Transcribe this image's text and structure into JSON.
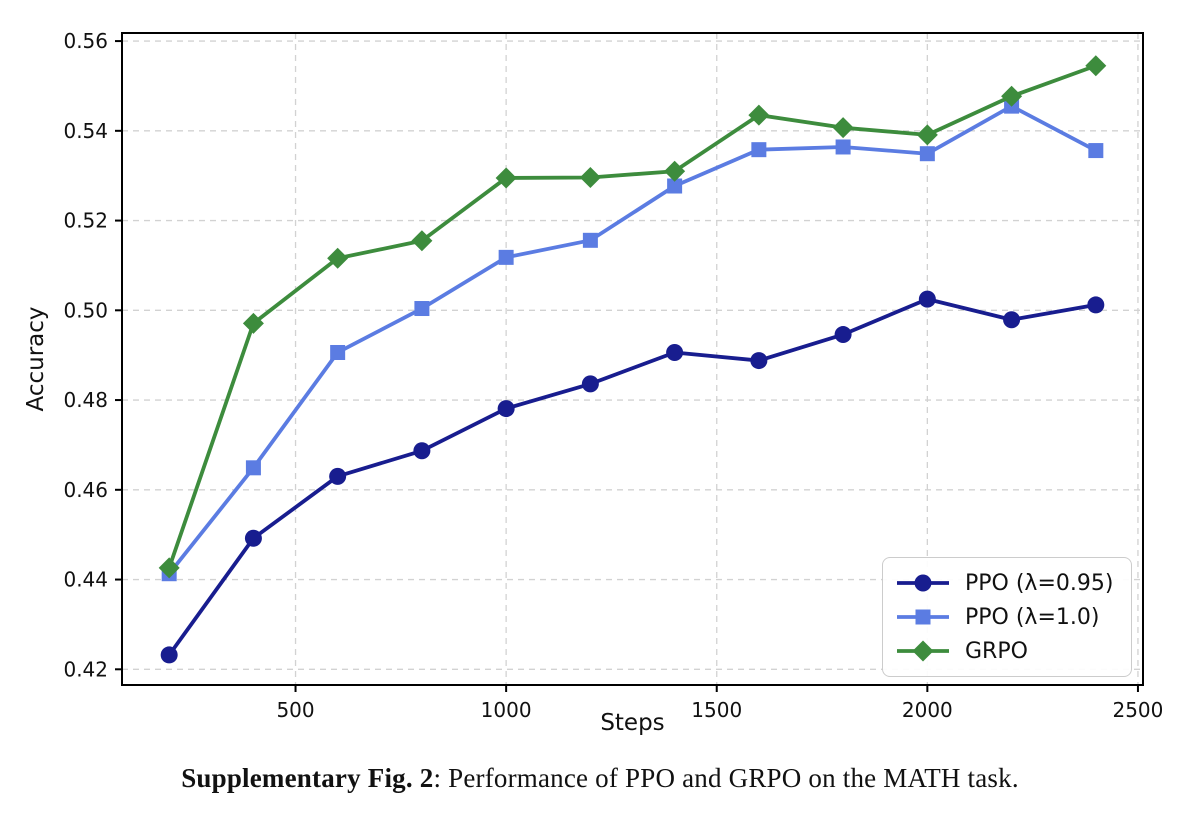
{
  "caption": {
    "bold": "Supplementary Fig. 2",
    "rest": ": Performance of PPO and GRPO on the MATH task."
  },
  "chart_data": {
    "type": "line",
    "title": "",
    "xlabel": "Steps",
    "ylabel": "Accuracy",
    "x": [
      200,
      400,
      600,
      800,
      1000,
      1200,
      1400,
      1600,
      1800,
      2000,
      2200,
      2400
    ],
    "series": [
      {
        "name": "PPO (λ=0.95)",
        "marker": "circle",
        "color": "#181d8f",
        "values": [
          0.4232,
          0.4492,
          0.463,
          0.4687,
          0.4781,
          0.4836,
          0.4906,
          0.4888,
          0.4946,
          0.5025,
          0.4979,
          0.5012
        ]
      },
      {
        "name": "PPO (λ=1.0)",
        "marker": "square",
        "color": "#5b7ce2",
        "values": [
          0.4413,
          0.4649,
          0.4906,
          0.5004,
          0.5118,
          0.5156,
          0.5277,
          0.5358,
          0.5364,
          0.5349,
          0.5455,
          0.5356
        ]
      },
      {
        "name": "GRPO",
        "marker": "diamond",
        "color": "#3d8c3d",
        "values": [
          0.4426,
          0.4971,
          0.5116,
          0.5155,
          0.5295,
          0.5296,
          0.531,
          0.5435,
          0.5407,
          0.5391,
          0.5477,
          0.5545
        ]
      }
    ],
    "xlim": [
      88,
      2512
    ],
    "ylim": [
      0.4165,
      0.5618
    ],
    "xticks": [
      500,
      1000,
      1500,
      2000,
      2500
    ],
    "yticks": [
      0.42,
      0.44,
      0.46,
      0.48,
      0.5,
      0.52,
      0.54,
      0.56
    ],
    "grid": true,
    "grid_style": "dashed",
    "legend_position": "lower right"
  }
}
